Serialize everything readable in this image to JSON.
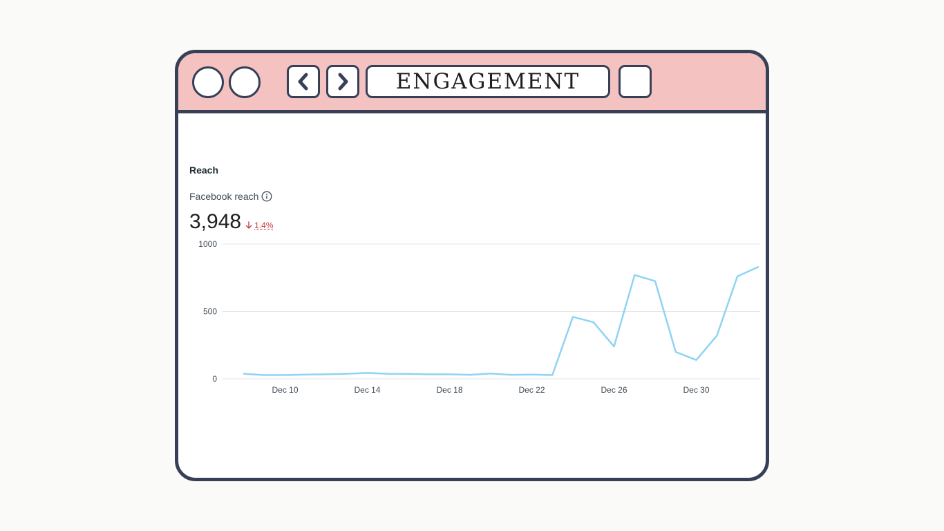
{
  "window": {
    "title": "ENGAGEMENT",
    "frame_color": "#374057",
    "titlebar_color": "#f4c2c1",
    "nav_back_icon": "chevron-left-icon",
    "nav_forward_icon": "chevron-right-icon"
  },
  "section": {
    "title": "Reach"
  },
  "metric": {
    "label": "Facebook reach",
    "info_icon": "info-icon",
    "value": "3,948",
    "change": "1.4%",
    "change_direction": "down",
    "change_color": "#c43d3d"
  },
  "chart_data": {
    "type": "line",
    "title": "",
    "xlabel": "",
    "ylabel": "",
    "ylim": [
      0,
      1000
    ],
    "yticks": [
      "0",
      "500",
      "1000"
    ],
    "grid": true,
    "line_color": "#8fd3f4",
    "x_tick_labels": [
      "Dec 10",
      "Dec 14",
      "Dec 18",
      "Dec 22",
      "Dec 26",
      "Dec 30"
    ],
    "x_tick_index": [
      2,
      6,
      10,
      14,
      18,
      22
    ],
    "x": [
      "Dec 8",
      "Dec 9",
      "Dec 10",
      "Dec 11",
      "Dec 12",
      "Dec 13",
      "Dec 14",
      "Dec 15",
      "Dec 16",
      "Dec 17",
      "Dec 18",
      "Dec 19",
      "Dec 20",
      "Dec 21",
      "Dec 22",
      "Dec 23",
      "Dec 24",
      "Dec 25",
      "Dec 26",
      "Dec 27",
      "Dec 28",
      "Dec 29",
      "Dec 30",
      "Dec 31",
      "Jan 1",
      "Jan 2"
    ],
    "values": [
      38,
      28,
      28,
      32,
      34,
      38,
      44,
      38,
      37,
      34,
      34,
      30,
      40,
      30,
      32,
      28,
      460,
      420,
      240,
      770,
      725,
      200,
      140,
      320,
      760,
      830
    ]
  }
}
